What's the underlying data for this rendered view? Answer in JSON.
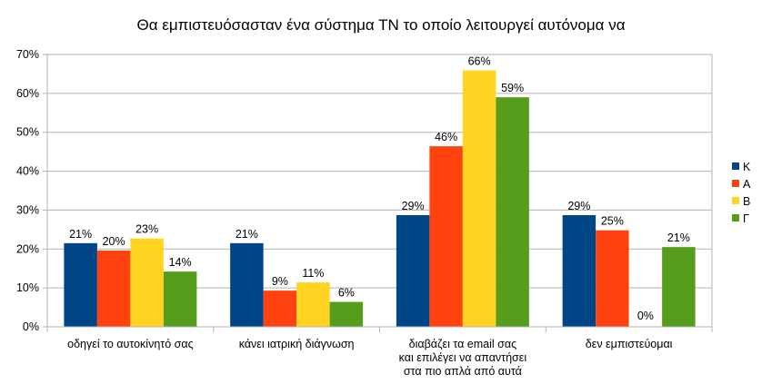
{
  "chart_data": {
    "type": "bar",
    "title": "Θα εμπιστευόσασταν ένα σύστημα ΤΝ το οποίο λειτουργεί αυτόνομα να",
    "categories": [
      [
        "οδηγεί το αυτοκίνητό σας"
      ],
      [
        "κάνει ιατρική διάγνωση"
      ],
      [
        "διαβάζει τα email σας",
        "και επιλέγει να απαντήσει",
        "στα πιο απλά από αυτά"
      ],
      [
        "δεν εμπιστεύομαι"
      ]
    ],
    "series": [
      {
        "name": "Κ",
        "color": "#004586",
        "values": [
          21.5,
          21.5,
          28.7,
          28.7
        ],
        "labels": [
          "21%",
          "21%",
          "29%",
          "29%"
        ]
      },
      {
        "name": "Α",
        "color": "#ff420e",
        "values": [
          19.6,
          9.3,
          46.4,
          24.8
        ],
        "labels": [
          "20%",
          "9%",
          "46%",
          "25%"
        ]
      },
      {
        "name": "Β",
        "color": "#ffd320",
        "values": [
          22.7,
          11.4,
          65.9,
          0
        ],
        "labels": [
          "23%",
          "11%",
          "66%",
          "0%"
        ]
      },
      {
        "name": "Γ",
        "color": "#579d1c",
        "values": [
          14.2,
          6.4,
          59.0,
          20.5
        ],
        "labels": [
          "14%",
          "6%",
          "59%",
          "21%"
        ]
      }
    ],
    "y_ticks": [
      "0%",
      "10%",
      "20%",
      "30%",
      "40%",
      "50%",
      "60%",
      "70%"
    ],
    "ylim": [
      0,
      70
    ],
    "grid": true,
    "legend_position": "right"
  }
}
